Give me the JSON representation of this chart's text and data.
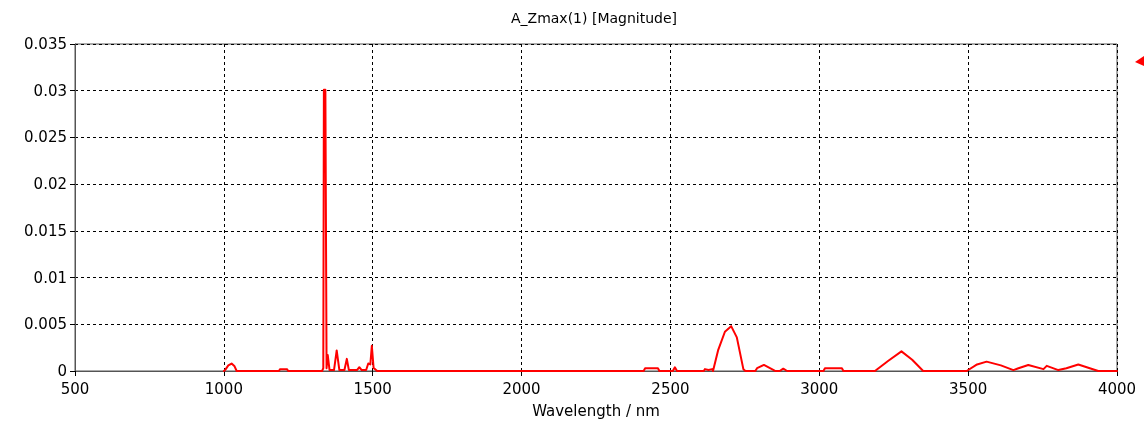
{
  "chart_data": {
    "type": "line",
    "title": "A_Zmax(1) [Magnitude]",
    "xlabel": "Wavelength / nm",
    "x": [
      1000,
      1004,
      1015,
      1026,
      1036,
      1043,
      1185,
      1189,
      1212,
      1216,
      1330,
      1334,
      1336,
      1341,
      1345,
      1349,
      1355,
      1370,
      1379,
      1388,
      1405,
      1413,
      1420,
      1447,
      1455,
      1463,
      1478,
      1485,
      1492,
      1497,
      1503,
      1508,
      1515,
      2410,
      2415,
      2435,
      2458,
      2463,
      2508,
      2515,
      2522,
      2612,
      2616,
      2628,
      2640,
      2643,
      2660,
      2683,
      2704,
      2723,
      2745,
      2752,
      2785,
      2791,
      2814,
      2847,
      2852,
      2867,
      2879,
      2892,
      3014,
      3019,
      3048,
      3076,
      3081,
      3187,
      3232,
      3276,
      3312,
      3349,
      3495,
      3530,
      3562,
      3610,
      3652,
      3669,
      3702,
      3753,
      3764,
      3803,
      3830,
      3870,
      3937,
      4000
    ],
    "series": [
      {
        "color": "#ff0000",
        "values": [
          0,
          0.0001,
          0.0006,
          0.0008,
          0.0005,
          0,
          0,
          0.0002,
          0.0002,
          0,
          0,
          0.0003,
          0.0301,
          0.0301,
          0.0003,
          0.0017,
          0.0001,
          0.0001,
          0.0022,
          0.0001,
          0.0001,
          0.0013,
          0.0001,
          0.0001,
          0.0004,
          0.0001,
          0.0001,
          0.0008,
          0.0007,
          0.0027,
          0.0003,
          0.0002,
          0,
          0,
          0.0003,
          0.0003,
          0.0003,
          0,
          0,
          0.0004,
          0,
          0,
          0.0002,
          0.0001,
          0.0002,
          0,
          0.0022,
          0.0042,
          0.0048,
          0.0036,
          0.0002,
          0,
          0,
          0.0003,
          0.00065,
          0.0001,
          0,
          0,
          0.00025,
          0,
          0,
          0.0003,
          0.0003,
          0.0003,
          0,
          0,
          0.0011,
          0.0021,
          0.0012,
          0,
          0,
          0.0007,
          0.001,
          0.0006,
          0.0001,
          0.0003,
          0.00065,
          0.0002,
          0.00055,
          0.0001,
          0.0003,
          0.0007,
          0,
          0
        ]
      }
    ],
    "xlim": [
      500,
      4000
    ],
    "xticks": [
      500,
      1000,
      1500,
      2000,
      2500,
      3000,
      3500,
      4000
    ],
    "ylim": [
      0,
      0.035
    ],
    "yticks": [
      0,
      0.005,
      0.01,
      0.015,
      0.02,
      0.025,
      0.03,
      0.035
    ],
    "grid": true,
    "marker": "none",
    "line_style": "solid"
  }
}
